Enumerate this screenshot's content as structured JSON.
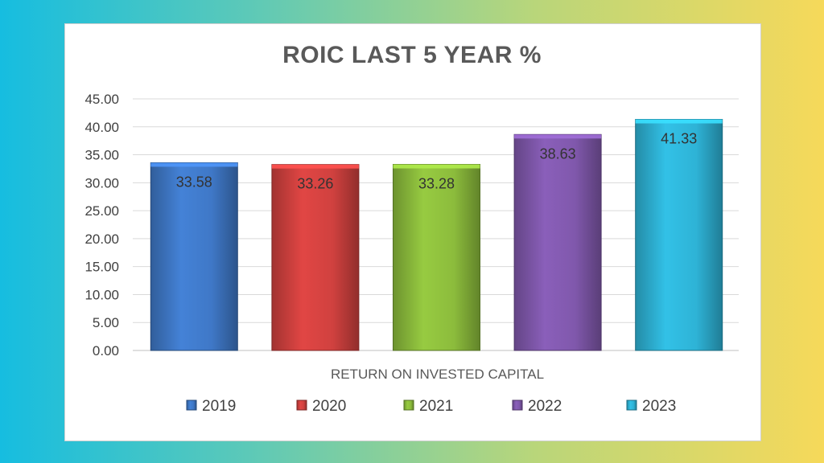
{
  "chart_data": {
    "type": "bar",
    "title": "ROIC LAST 5 YEAR %",
    "categories": [
      "RETURN ON INVESTED CAPITAL"
    ],
    "series": [
      {
        "name": "2019",
        "values": [
          33.58
        ],
        "color": "#3f78c7"
      },
      {
        "name": "2020",
        "values": [
          33.26
        ],
        "color": "#d0413f"
      },
      {
        "name": "2021",
        "values": [
          33.28
        ],
        "color": "#8cbc3c"
      },
      {
        "name": "2022",
        "values": [
          38.63
        ],
        "color": "#8058ac"
      },
      {
        "name": "2023",
        "values": [
          41.33
        ],
        "color": "#2eb3d6"
      }
    ],
    "data_labels": [
      "33.58",
      "33.26",
      "33.28",
      "38.63",
      "41.33"
    ],
    "ylim": [
      0,
      45
    ],
    "yticks": [
      "0.00",
      "5.00",
      "10.00",
      "15.00",
      "20.00",
      "25.00",
      "30.00",
      "35.00",
      "40.00",
      "45.00"
    ],
    "grid": true,
    "legend_position": "bottom"
  }
}
